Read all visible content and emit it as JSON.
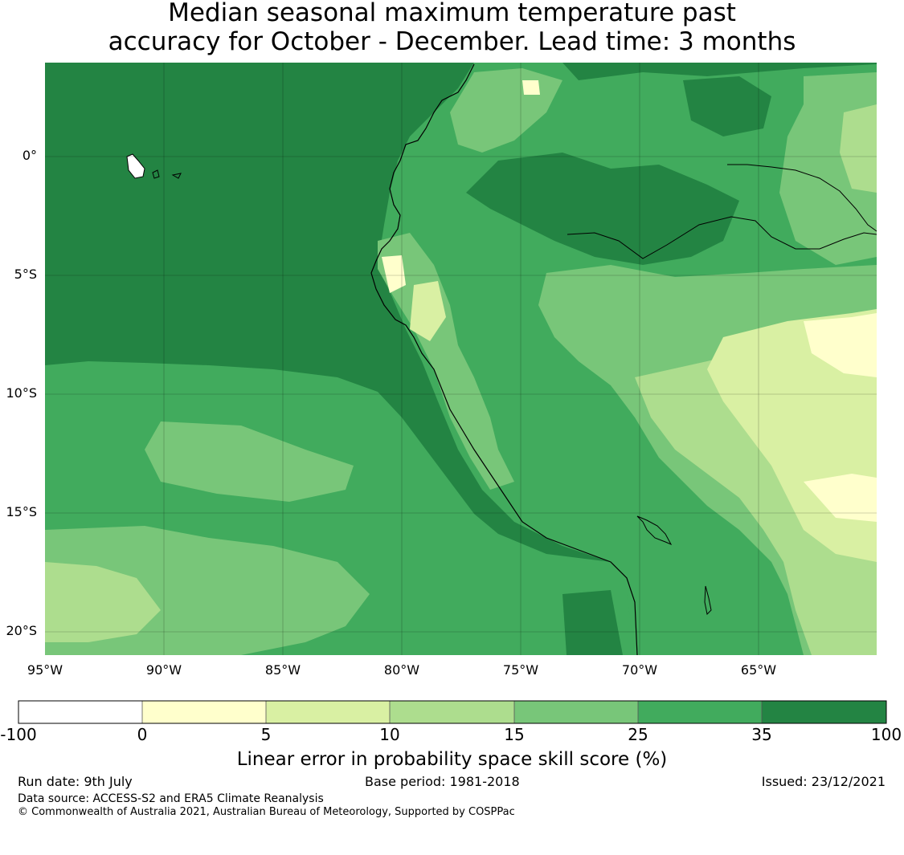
{
  "title": {
    "line1": "Median seasonal maximum temperature past",
    "line2": "accuracy for October - December. Lead time: 3 months"
  },
  "map": {
    "lon_range": [
      -95,
      -60
    ],
    "lat_range": [
      -21,
      4
    ],
    "lat_ticks": [
      {
        "value": 0,
        "label": "0°"
      },
      {
        "value": -5,
        "label": "5°S"
      },
      {
        "value": -10,
        "label": "10°S"
      },
      {
        "value": -15,
        "label": "15°S"
      },
      {
        "value": -20,
        "label": "20°S"
      }
    ],
    "lon_ticks": [
      {
        "value": -95,
        "label": "95°W"
      },
      {
        "value": -90,
        "label": "90°W"
      },
      {
        "value": -85,
        "label": "85°W"
      },
      {
        "value": -80,
        "label": "80°W"
      },
      {
        "value": -75,
        "label": "75°W"
      },
      {
        "value": -70,
        "label": "70°W"
      },
      {
        "value": -65,
        "label": "65°W"
      }
    ],
    "gridlines": true,
    "colors": {
      "c0": "#ffffcc",
      "c5": "#d9f0a3",
      "c10": "#addd8e",
      "c15": "#78c679",
      "c25": "#41ab5d",
      "c35": "#238443"
    }
  },
  "colorbar": {
    "bins": [
      {
        "from": -100,
        "to": 0,
        "color": "#ffffff"
      },
      {
        "from": 0,
        "to": 5,
        "color": "#ffffcc"
      },
      {
        "from": 5,
        "to": 10,
        "color": "#d9f0a3"
      },
      {
        "from": 10,
        "to": 15,
        "color": "#addd8e"
      },
      {
        "from": 15,
        "to": 25,
        "color": "#78c679"
      },
      {
        "from": 25,
        "to": 35,
        "color": "#41ab5d"
      },
      {
        "from": 35,
        "to": 100,
        "color": "#238443"
      }
    ],
    "tick_labels": [
      "-100",
      "0",
      "5",
      "10",
      "15",
      "25",
      "35",
      "100"
    ],
    "label": "Linear error in probability space skill score (%)"
  },
  "footer": {
    "run_date": "Run date: 9th July",
    "base_period": "Base period: 1981-2018",
    "issued": "Issued: 23/12/2021",
    "data_source": "Data source: ACCESS-S2 and ERA5 Climate Reanalysis",
    "copyright": "© Commonwealth of Australia 2021, Australian Bureau of Meteorology, Supported by COSPPac"
  }
}
